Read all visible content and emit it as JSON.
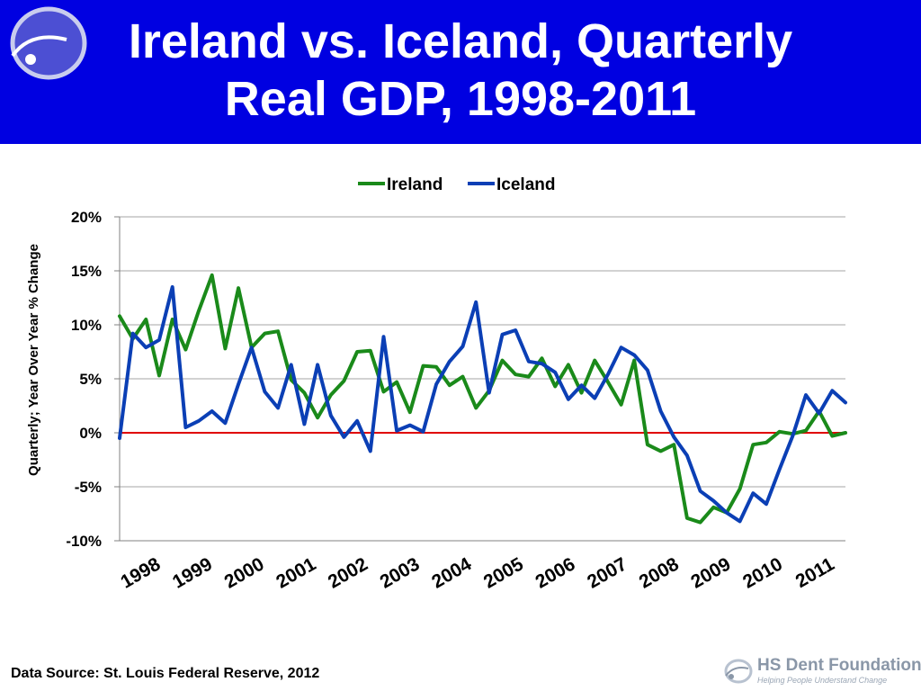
{
  "slide": {
    "title_line1": "Ireland vs. Iceland, Quarterly",
    "title_line2": "Real GDP, 1998-2011",
    "title_bg": "#0000E1",
    "source": "Data Source: St. Louis Federal Reserve, 2012",
    "logo_name": "HS Dent Foundation",
    "logo_tagline": "Helping People Understand Change"
  },
  "chart_data": {
    "type": "line",
    "title": "",
    "ylabel": "Quarterly; Year Over Year % Change",
    "xlabel": "",
    "ylim": [
      -10,
      20
    ],
    "yticks": [
      20,
      15,
      10,
      5,
      0,
      -5,
      -10
    ],
    "ytick_labels": [
      "20%",
      "15%",
      "10%",
      "5%",
      "0%",
      "-5%",
      "-10%"
    ],
    "xlim": [
      1998.0,
      2011.75
    ],
    "xtick_labels": [
      "1998",
      "1999",
      "2000",
      "2001",
      "2002",
      "2003",
      "2004",
      "2005",
      "2006",
      "2007",
      "2008",
      "2009",
      "2010",
      "2011"
    ],
    "grid": true,
    "legend_position": "top",
    "reference_line": {
      "y": 0,
      "color": "#E00000"
    },
    "series": [
      {
        "name": "Ireland",
        "color": "#1A8A1A",
        "x": [
          1998.0,
          1998.25,
          1998.5,
          1998.75,
          1999.0,
          1999.25,
          1999.5,
          1999.75,
          2000.0,
          2000.25,
          2000.5,
          2000.75,
          2001.0,
          2001.25,
          2001.5,
          2001.75,
          2002.0,
          2002.25,
          2002.5,
          2002.75,
          2003.0,
          2003.25,
          2003.5,
          2003.75,
          2004.0,
          2004.25,
          2004.5,
          2004.75,
          2005.0,
          2005.25,
          2005.5,
          2005.75,
          2006.0,
          2006.25,
          2006.5,
          2006.75,
          2007.0,
          2007.25,
          2007.5,
          2007.75,
          2008.0,
          2008.25,
          2008.5,
          2008.75,
          2009.0,
          2009.25,
          2009.5,
          2009.75,
          2010.0,
          2010.25,
          2010.5,
          2010.75,
          2011.0,
          2011.25,
          2011.5,
          2011.75
        ],
        "y": [
          10.8,
          8.7,
          10.5,
          5.3,
          10.5,
          7.7,
          11.3,
          14.6,
          7.8,
          13.4,
          7.9,
          9.2,
          9.4,
          4.9,
          3.7,
          1.4,
          3.5,
          4.8,
          7.5,
          7.6,
          3.8,
          4.7,
          1.9,
          6.2,
          6.1,
          4.4,
          5.2,
          2.3,
          3.9,
          6.7,
          5.4,
          5.2,
          6.9,
          4.3,
          6.3,
          3.7,
          6.7,
          4.7,
          2.6,
          6.7,
          -1.1,
          -1.7,
          -1.1,
          -7.9,
          -8.3,
          -6.9,
          -7.4,
          -5.2,
          -1.1,
          -0.9,
          0.1,
          -0.1,
          0.2,
          2.0,
          -0.3,
          0.0
        ]
      },
      {
        "name": "Iceland",
        "color": "#0B3FB5",
        "x": [
          1998.0,
          1998.25,
          1998.5,
          1998.75,
          1999.0,
          1999.25,
          1999.5,
          1999.75,
          2000.0,
          2000.25,
          2000.5,
          2000.75,
          2001.0,
          2001.25,
          2001.5,
          2001.75,
          2002.0,
          2002.25,
          2002.5,
          2002.75,
          2003.0,
          2003.25,
          2003.5,
          2003.75,
          2004.0,
          2004.25,
          2004.5,
          2004.75,
          2005.0,
          2005.25,
          2005.5,
          2005.75,
          2006.0,
          2006.25,
          2006.5,
          2006.75,
          2007.0,
          2007.25,
          2007.5,
          2007.75,
          2008.0,
          2008.25,
          2008.5,
          2008.75,
          2009.0,
          2009.25,
          2009.5,
          2009.75,
          2010.0,
          2010.25,
          2010.5,
          2010.75,
          2011.0,
          2011.25,
          2011.5,
          2011.75
        ],
        "y": [
          -0.5,
          9.2,
          7.9,
          8.6,
          13.5,
          0.5,
          1.1,
          2.0,
          0.9,
          4.5,
          7.9,
          3.8,
          2.3,
          6.3,
          0.8,
          6.3,
          1.6,
          -0.4,
          1.1,
          -1.7,
          8.9,
          0.2,
          0.7,
          0.1,
          4.5,
          6.6,
          8.0,
          12.1,
          3.7,
          9.1,
          9.5,
          6.6,
          6.4,
          5.6,
          3.1,
          4.4,
          3.2,
          5.4,
          7.9,
          7.2,
          5.8,
          2.0,
          -0.4,
          -2.1,
          -5.4,
          -6.3,
          -7.4,
          -8.2,
          -5.6,
          -6.6,
          -3.4,
          -0.3,
          3.5,
          1.8,
          3.9,
          2.8
        ]
      }
    ]
  }
}
